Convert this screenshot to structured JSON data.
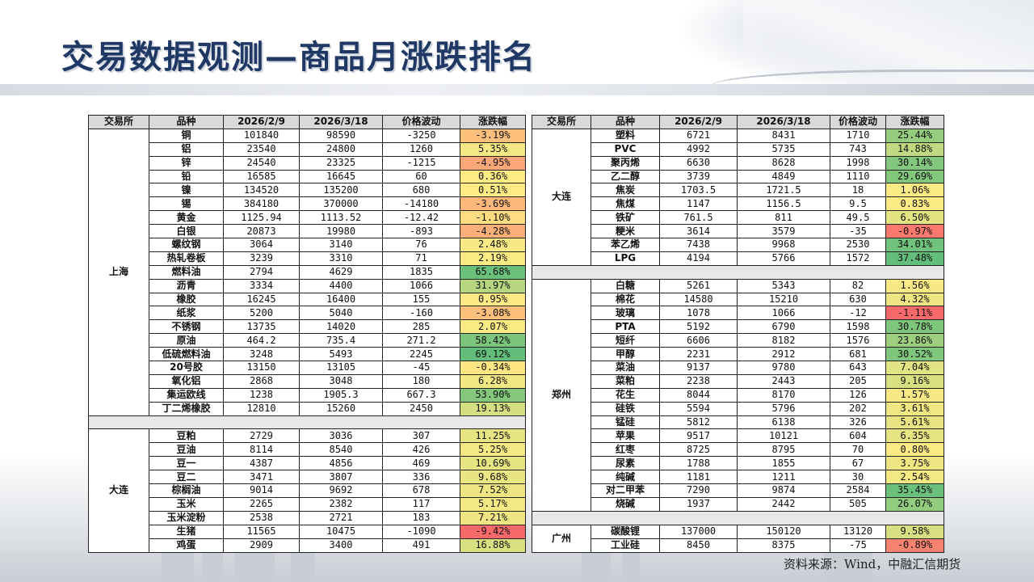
{
  "title": "交易数据观测—商品月涨跌排名",
  "source": "资料来源：Wind，中融汇信期货",
  "headers": [
    "交易所",
    "品种",
    "2026/2/9",
    "2026/3/18",
    "价格波动",
    "涨跌幅"
  ],
  "left_table": {
    "groups": [
      {
        "exchange": "上海",
        "rows": [
          {
            "name": "铜",
            "d1": "101840",
            "d2": "98590",
            "diff": "-3250",
            "chg": "-3.19%"
          },
          {
            "name": "铝",
            "d1": "23540",
            "d2": "24800",
            "diff": "1260",
            "chg": "5.35%"
          },
          {
            "name": "锌",
            "d1": "24540",
            "d2": "23325",
            "diff": "-1215",
            "chg": "-4.95%"
          },
          {
            "name": "铅",
            "d1": "16585",
            "d2": "16645",
            "diff": "60",
            "chg": "0.36%"
          },
          {
            "name": "镍",
            "d1": "134520",
            "d2": "135200",
            "diff": "680",
            "chg": "0.51%"
          },
          {
            "name": "锡",
            "d1": "384180",
            "d2": "370000",
            "diff": "-14180",
            "chg": "-3.69%"
          },
          {
            "name": "黄金",
            "d1": "1125.94",
            "d2": "1113.52",
            "diff": "-12.42",
            "chg": "-1.10%"
          },
          {
            "name": "白银",
            "d1": "20873",
            "d2": "19980",
            "diff": "-893",
            "chg": "-4.28%"
          },
          {
            "name": "螺纹钢",
            "d1": "3064",
            "d2": "3140",
            "diff": "76",
            "chg": "2.48%"
          },
          {
            "name": "热轧卷板",
            "d1": "3239",
            "d2": "3310",
            "diff": "71",
            "chg": "2.19%"
          },
          {
            "name": "燃料油",
            "d1": "2794",
            "d2": "4629",
            "diff": "1835",
            "chg": "65.68%"
          },
          {
            "name": "沥青",
            "d1": "3334",
            "d2": "4400",
            "diff": "1066",
            "chg": "31.97%"
          },
          {
            "name": "橡胶",
            "d1": "16245",
            "d2": "16400",
            "diff": "155",
            "chg": "0.95%"
          },
          {
            "name": "纸浆",
            "d1": "5200",
            "d2": "5040",
            "diff": "-160",
            "chg": "-3.08%"
          },
          {
            "name": "不锈钢",
            "d1": "13735",
            "d2": "14020",
            "diff": "285",
            "chg": "2.07%"
          },
          {
            "name": "原油",
            "d1": "464.2",
            "d2": "735.4",
            "diff": "271.2",
            "chg": "58.42%"
          },
          {
            "name": "低硫燃料油",
            "d1": "3248",
            "d2": "5493",
            "diff": "2245",
            "chg": "69.12%"
          },
          {
            "name": "20号胶",
            "d1": "13150",
            "d2": "13105",
            "diff": "-45",
            "chg": "-0.34%"
          },
          {
            "name": "氧化铝",
            "d1": "2868",
            "d2": "3048",
            "diff": "180",
            "chg": "6.28%"
          },
          {
            "name": "集运欧线",
            "d1": "1238",
            "d2": "1905.3",
            "diff": "667.3",
            "chg": "53.90%"
          },
          {
            "name": "丁二烯橡胶",
            "d1": "12810",
            "d2": "15260",
            "diff": "2450",
            "chg": "19.13%"
          }
        ]
      },
      {
        "exchange": "大连",
        "rows": [
          {
            "name": "豆粕",
            "d1": "2729",
            "d2": "3036",
            "diff": "307",
            "chg": "11.25%"
          },
          {
            "name": "豆油",
            "d1": "8114",
            "d2": "8540",
            "diff": "426",
            "chg": "5.25%"
          },
          {
            "name": "豆一",
            "d1": "4387",
            "d2": "4856",
            "diff": "469",
            "chg": "10.69%"
          },
          {
            "name": "豆二",
            "d1": "3471",
            "d2": "3807",
            "diff": "336",
            "chg": "9.68%"
          },
          {
            "name": "棕榈油",
            "d1": "9014",
            "d2": "9692",
            "diff": "678",
            "chg": "7.52%"
          },
          {
            "name": "玉米",
            "d1": "2265",
            "d2": "2382",
            "diff": "117",
            "chg": "5.17%"
          },
          {
            "name": "玉米淀粉",
            "d1": "2538",
            "d2": "2721",
            "diff": "183",
            "chg": "7.21%"
          },
          {
            "name": "生猪",
            "d1": "11565",
            "d2": "10475",
            "diff": "-1090",
            "chg": "-9.42%"
          },
          {
            "name": "鸡蛋",
            "d1": "2909",
            "d2": "3400",
            "diff": "491",
            "chg": "16.88%"
          }
        ]
      }
    ]
  },
  "right_table": {
    "groups": [
      {
        "exchange": "大连",
        "rows": [
          {
            "name": "塑料",
            "d1": "6721",
            "d2": "8431",
            "diff": "1710",
            "chg": "25.44%"
          },
          {
            "name": "PVC",
            "d1": "4992",
            "d2": "5735",
            "diff": "743",
            "chg": "14.88%"
          },
          {
            "name": "聚丙烯",
            "d1": "6630",
            "d2": "8628",
            "diff": "1998",
            "chg": "30.14%"
          },
          {
            "name": "乙二醇",
            "d1": "3739",
            "d2": "4849",
            "diff": "1110",
            "chg": "29.69%"
          },
          {
            "name": "焦炭",
            "d1": "1703.5",
            "d2": "1721.5",
            "diff": "18",
            "chg": "1.06%"
          },
          {
            "name": "焦煤",
            "d1": "1147",
            "d2": "1156.5",
            "diff": "9.5",
            "chg": "0.83%"
          },
          {
            "name": "铁矿",
            "d1": "761.5",
            "d2": "811",
            "diff": "49.5",
            "chg": "6.50%"
          },
          {
            "name": "粳米",
            "d1": "3614",
            "d2": "3579",
            "diff": "-35",
            "chg": "-0.97%"
          },
          {
            "name": "苯乙烯",
            "d1": "7438",
            "d2": "9968",
            "diff": "2530",
            "chg": "34.01%"
          },
          {
            "name": "LPG",
            "d1": "4194",
            "d2": "5766",
            "diff": "1572",
            "chg": "37.48%"
          }
        ]
      },
      {
        "exchange": "郑州",
        "rows": [
          {
            "name": "白糖",
            "d1": "5261",
            "d2": "5343",
            "diff": "82",
            "chg": "1.56%"
          },
          {
            "name": "棉花",
            "d1": "14580",
            "d2": "15210",
            "diff": "630",
            "chg": "4.32%"
          },
          {
            "name": "玻璃",
            "d1": "1078",
            "d2": "1066",
            "diff": "-12",
            "chg": "-1.11%"
          },
          {
            "name": "PTA",
            "d1": "5192",
            "d2": "6790",
            "diff": "1598",
            "chg": "30.78%"
          },
          {
            "name": "短纤",
            "d1": "6606",
            "d2": "8182",
            "diff": "1576",
            "chg": "23.86%"
          },
          {
            "name": "甲醇",
            "d1": "2231",
            "d2": "2912",
            "diff": "681",
            "chg": "30.52%"
          },
          {
            "name": "菜油",
            "d1": "9137",
            "d2": "9780",
            "diff": "643",
            "chg": "7.04%"
          },
          {
            "name": "菜粕",
            "d1": "2238",
            "d2": "2443",
            "diff": "205",
            "chg": "9.16%"
          },
          {
            "name": "花生",
            "d1": "8044",
            "d2": "8170",
            "diff": "126",
            "chg": "1.57%"
          },
          {
            "name": "硅铁",
            "d1": "5594",
            "d2": "5796",
            "diff": "202",
            "chg": "3.61%"
          },
          {
            "name": "锰硅",
            "d1": "5812",
            "d2": "6138",
            "diff": "326",
            "chg": "5.61%"
          },
          {
            "name": "苹果",
            "d1": "9517",
            "d2": "10121",
            "diff": "604",
            "chg": "6.35%"
          },
          {
            "name": "红枣",
            "d1": "8725",
            "d2": "8795",
            "diff": "70",
            "chg": "0.80%"
          },
          {
            "name": "尿素",
            "d1": "1788",
            "d2": "1855",
            "diff": "67",
            "chg": "3.75%"
          },
          {
            "name": "纯碱",
            "d1": "1181",
            "d2": "1211",
            "diff": "30",
            "chg": "2.54%"
          },
          {
            "name": "对二甲苯",
            "d1": "7290",
            "d2": "9874",
            "diff": "2584",
            "chg": "35.45%"
          },
          {
            "name": "烧碱",
            "d1": "1937",
            "d2": "2442",
            "diff": "505",
            "chg": "26.07%"
          }
        ]
      },
      {
        "exchange": "广州",
        "rows": [
          {
            "name": "碳酸锂",
            "d1": "137000",
            "d2": "150120",
            "diff": "13120",
            "chg": "9.58%"
          },
          {
            "name": "工业硅",
            "d1": "8450",
            "d2": "8375",
            "diff": "-75",
            "chg": "-0.89%"
          }
        ]
      }
    ]
  },
  "colors": {
    "title": "#1f3864",
    "header_bg": "#d9d9d9",
    "scale_red": "#f8696b",
    "scale_yellow": "#ffeb84",
    "scale_green": "#63be7b"
  }
}
